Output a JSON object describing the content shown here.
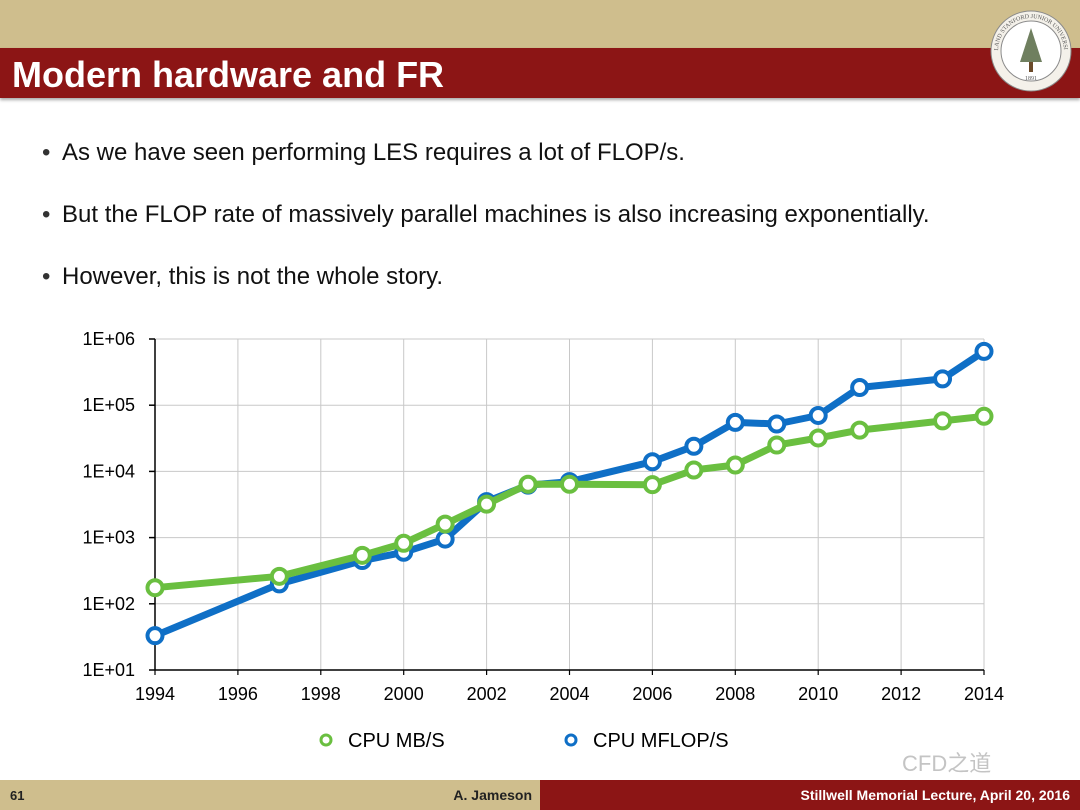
{
  "slide": {
    "title": "Modern hardware and FR",
    "bullets": [
      "As we have seen performing LES requires a lot of FLOP/s.",
      "But the FLOP rate of massively parallel machines is also increasing exponentially.",
      "However, this is not the whole story."
    ],
    "bullet_marker": "•"
  },
  "seal": {
    "text": "LELAND STANFORD JUNIOR UNIVERSITY",
    "year": "1891"
  },
  "colors": {
    "title_bar": "#8c1515",
    "band": "#cfbe8d",
    "mb_series": "#6abf40",
    "mflop_series": "#0f6fc6"
  },
  "chart_data": {
    "type": "line",
    "title": "",
    "xlabel": "",
    "ylabel": "",
    "y_scale": "log",
    "ylim": [
      10,
      1000000
    ],
    "xlim": [
      1994,
      2014
    ],
    "grid": true,
    "legend_position": "bottom",
    "x_ticks": [
      "1994",
      "1996",
      "1998",
      "2000",
      "2002",
      "2004",
      "2006",
      "2008",
      "2010",
      "2012",
      "2014"
    ],
    "y_ticks": [
      {
        "value": 10,
        "label": "1E+01"
      },
      {
        "value": 100,
        "label": "1E+02"
      },
      {
        "value": 1000,
        "label": "1E+03"
      },
      {
        "value": 10000,
        "label": "1E+04"
      },
      {
        "value": 100000,
        "label": "1E+05"
      },
      {
        "value": 1000000,
        "label": "1E+06"
      }
    ],
    "series": [
      {
        "name": "CPU MFLOP/S",
        "color": "#0f6fc6",
        "x": [
          1994,
          1997,
          1999,
          2000,
          2001,
          2002,
          2003,
          2004,
          2006,
          2007,
          2008,
          2009,
          2010,
          2011,
          2013,
          2014
        ],
        "values": [
          33,
          200,
          450,
          600,
          950,
          3500,
          6200,
          7000,
          14000,
          24000,
          55000,
          52000,
          70000,
          185000,
          250000,
          650000
        ]
      },
      {
        "name": "CPU MB/S",
        "color": "#6abf40",
        "x": [
          1994,
          1997,
          1999,
          2000,
          2001,
          2002,
          2003,
          2004,
          2006,
          2007,
          2008,
          2009,
          2010,
          2011,
          2013,
          2014
        ],
        "values": [
          175,
          260,
          540,
          820,
          1600,
          3200,
          6400,
          6400,
          6300,
          10500,
          12500,
          25000,
          32000,
          42000,
          58000,
          68000
        ]
      }
    ],
    "legend": [
      "CPU MB/S",
      "CPU MFLOP/S"
    ]
  },
  "footer": {
    "page": "61",
    "author": "A. Jameson",
    "lecture": "Stillwell Memorial Lecture, April 20, 2016"
  },
  "watermark": "CFD之道"
}
